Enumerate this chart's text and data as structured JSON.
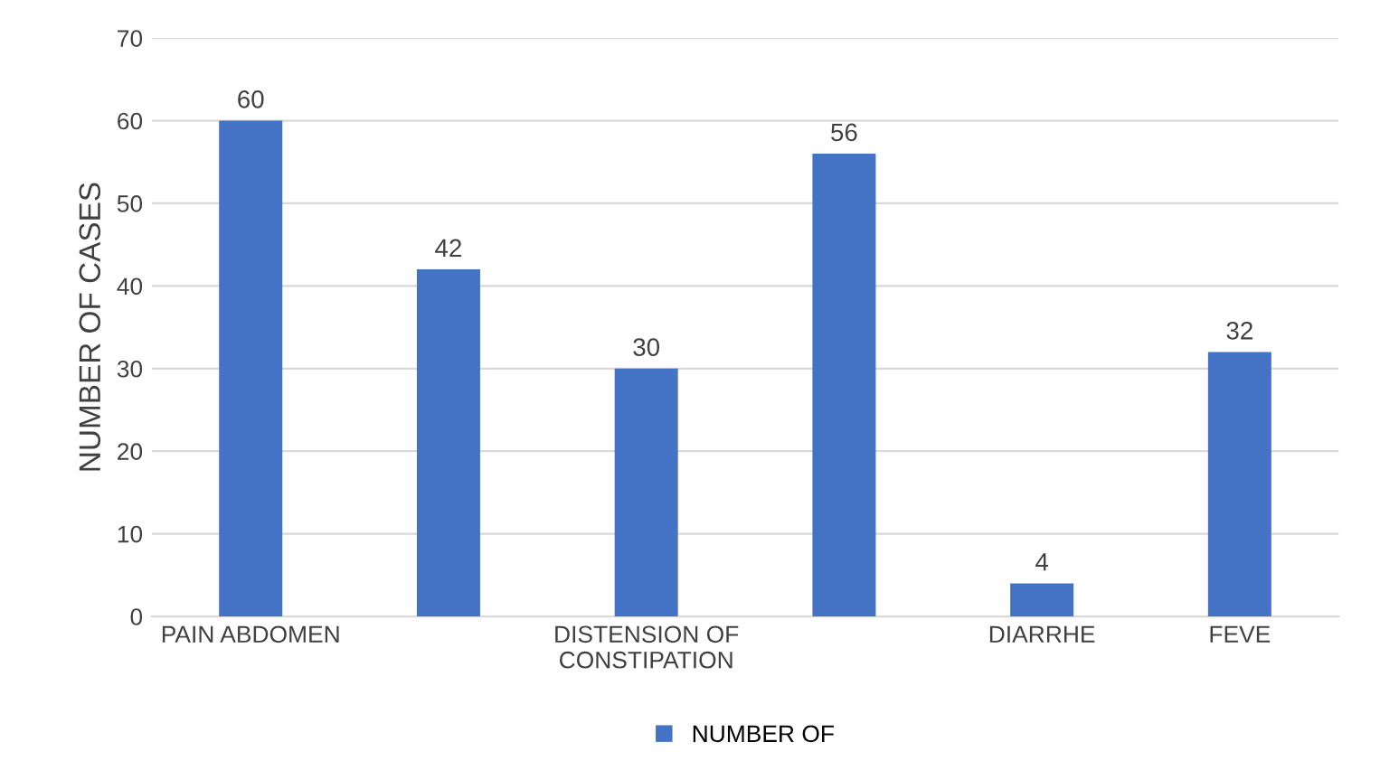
{
  "chart_data": {
    "type": "bar",
    "ylabel": "NUMBER OF CASES",
    "categories": [
      "PAIN ABDOMEN",
      null,
      "DISTENSION OF\nCONSTIPATION",
      null,
      "DIARRHE",
      "FEVE"
    ],
    "series": [
      {
        "name": "NUMBER OF",
        "color": "#4472c4",
        "values": [
          60,
          42,
          30,
          56,
          4,
          32
        ]
      }
    ],
    "ylim": [
      0,
      70
    ],
    "yticks": [
      0,
      10,
      20,
      30,
      40,
      50,
      60,
      70
    ],
    "grid": "y",
    "legend": "bottom",
    "data_labels": true
  }
}
